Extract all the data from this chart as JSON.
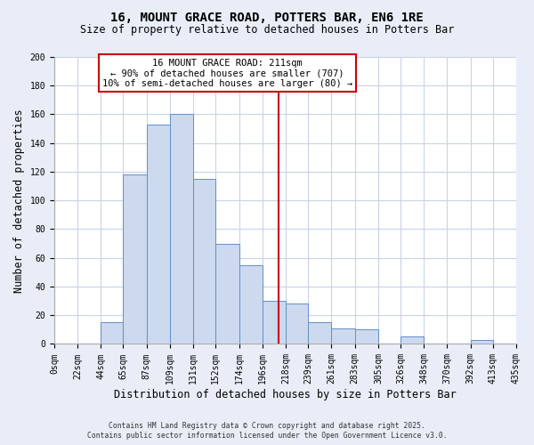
{
  "title": "16, MOUNT GRACE ROAD, POTTERS BAR, EN6 1RE",
  "subtitle": "Size of property relative to detached houses in Potters Bar",
  "xlabel": "Distribution of detached houses by size in Potters Bar",
  "ylabel": "Number of detached properties",
  "bin_edges": [
    0,
    22,
    44,
    65,
    87,
    109,
    131,
    152,
    174,
    196,
    218,
    239,
    261,
    283,
    305,
    326,
    348,
    370,
    392,
    413,
    435
  ],
  "bin_labels": [
    "0sqm",
    "22sqm",
    "44sqm",
    "65sqm",
    "87sqm",
    "109sqm",
    "131sqm",
    "152sqm",
    "174sqm",
    "196sqm",
    "218sqm",
    "239sqm",
    "261sqm",
    "283sqm",
    "305sqm",
    "326sqm",
    "348sqm",
    "370sqm",
    "392sqm",
    "413sqm",
    "435sqm"
  ],
  "counts": [
    0,
    0,
    15,
    118,
    153,
    160,
    115,
    70,
    55,
    30,
    28,
    15,
    11,
    10,
    0,
    5,
    0,
    0,
    3,
    0
  ],
  "property_size": 211,
  "bar_color": "#cdd9ee",
  "bar_edge_color": "#6090c8",
  "vline_color": "#cc0000",
  "annotation_title": "16 MOUNT GRACE ROAD: 211sqm",
  "annotation_line1": "← 90% of detached houses are smaller (707)",
  "annotation_line2": "10% of semi-detached houses are larger (80) →",
  "annotation_box_edge": "#cc0000",
  "ylim": [
    0,
    200
  ],
  "yticks": [
    0,
    20,
    40,
    60,
    80,
    100,
    120,
    140,
    160,
    180,
    200
  ],
  "fig_background_color": "#e8edf8",
  "plot_background_color": "#ffffff",
  "grid_color": "#c8d4e8",
  "footer1": "Contains HM Land Registry data © Crown copyright and database right 2025.",
  "footer2": "Contains public sector information licensed under the Open Government Licence v3.0.",
  "title_fontsize": 10,
  "subtitle_fontsize": 8.5,
  "axis_label_fontsize": 8.5,
  "tick_fontsize": 7,
  "annotation_fontsize": 7.5
}
